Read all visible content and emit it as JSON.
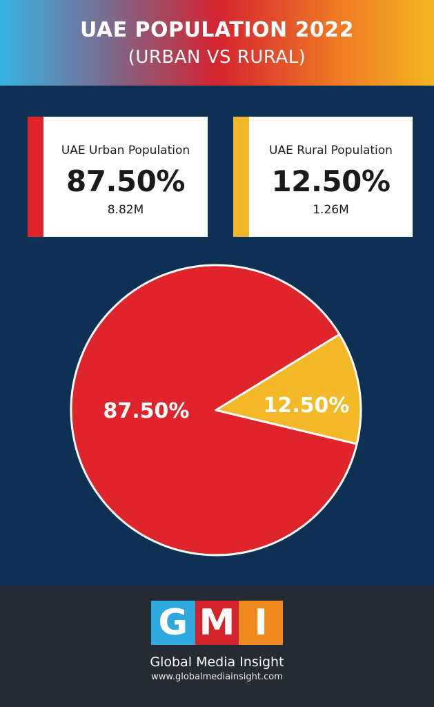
{
  "header": {
    "title": "UAE POPULATION 2022",
    "subtitle": "(URBAN VS RURAL)"
  },
  "cards": {
    "urban": {
      "label": "UAE Urban Population",
      "percent": "87.50%",
      "count": "8.82M",
      "color": "#df242b"
    },
    "rural": {
      "label": "UAE Rural Population",
      "percent": "12.50%",
      "count": "1.26M",
      "color": "#f3b928"
    }
  },
  "chart_data": {
    "type": "pie",
    "categories": [
      "UAE Urban Population",
      "UAE Rural Population"
    ],
    "values": [
      87.5,
      12.5
    ],
    "labels": [
      "87.50%",
      "12.50%"
    ],
    "colors": [
      "#df242b",
      "#f3b928"
    ],
    "grid": false
  },
  "footer": {
    "logo_letters": [
      "G",
      "M",
      "I"
    ],
    "logo_colors": [
      "#2fa8df",
      "#d2232b",
      "#ef8a1f"
    ],
    "brand": "Global Media Insight",
    "url": "www.globalmediainsight.com"
  }
}
